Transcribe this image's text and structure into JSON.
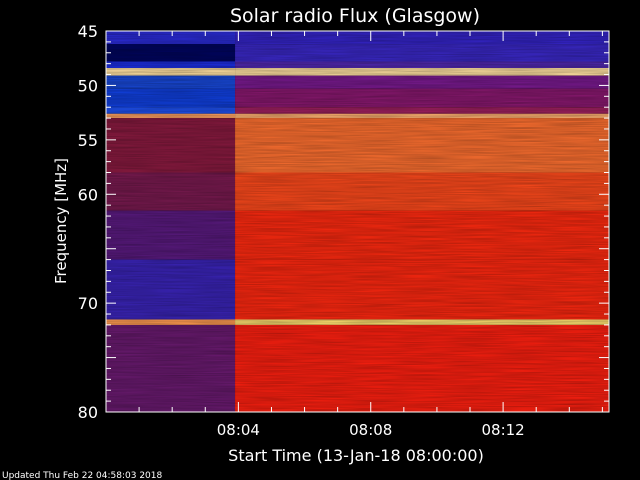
{
  "chart_data": {
    "type": "heatmap",
    "title": "Solar radio Flux (Glasgow)",
    "xlabel": "Start Time (13-Jan-18 08:00:00)",
    "ylabel": "Frequency [MHz]",
    "footer": "Updated Thu Feb 22 04:58:03 2018",
    "x_range_minutes": [
      0,
      15.2
    ],
    "y_range_mhz": [
      45,
      80
    ],
    "y_ticks": [
      {
        "value": 45,
        "label": "45"
      },
      {
        "value": 50,
        "label": "50"
      },
      {
        "value": 55,
        "label": "55"
      },
      {
        "value": 60,
        "label": "60"
      },
      {
        "value": 65,
        "label": ""
      },
      {
        "value": 70,
        "label": "70"
      },
      {
        "value": 75,
        "label": ""
      },
      {
        "value": 80,
        "label": "80"
      }
    ],
    "x_ticks": [
      {
        "value": 4,
        "label": "08:04"
      },
      {
        "value": 8,
        "label": "08:08"
      },
      {
        "value": 12,
        "label": "08:12"
      }
    ],
    "x_minor_step": 1,
    "y_minor_step": 1,
    "transition_minute": 3.9,
    "colormap": [
      "#000033",
      "#1a1aa8",
      "#3a2cd0",
      "#7a1450",
      "#c01818",
      "#ff2a10",
      "#ff7a2a",
      "#ffd070",
      "#ffffa0"
    ],
    "bands": [
      {
        "from": 45,
        "to": 46.2,
        "before": "#2a2bd6",
        "after": "#3424c8"
      },
      {
        "from": 46.2,
        "to": 47.8,
        "before": "#000560",
        "after": "#3a28c8"
      },
      {
        "from": 47.8,
        "to": 48.4,
        "before": "#1c2ee0",
        "after": "#5028b0"
      },
      {
        "from": 48.4,
        "to": 49.1,
        "before": "#ffe0a0",
        "after": "#ffe0a0"
      },
      {
        "from": 49.1,
        "to": 50.3,
        "before": "#1848d8",
        "after": "#7a1a90"
      },
      {
        "from": 50.3,
        "to": 52.0,
        "before": "#1040e0",
        "after": "#8a1870"
      },
      {
        "from": 52.0,
        "to": 52.6,
        "before": "#1e50f0",
        "after": "#a02060"
      },
      {
        "from": 52.6,
        "to": 53.0,
        "before": "#ffa060",
        "after": "#ffb070"
      },
      {
        "from": 53.0,
        "to": 58.0,
        "before": "#8a1a40",
        "after": "#ff7030"
      },
      {
        "from": 58.0,
        "to": 61.5,
        "before": "#7a1a50",
        "after": "#ff4a1c"
      },
      {
        "from": 61.5,
        "to": 66.0,
        "before": "#5a1a80",
        "after": "#ff2a10"
      },
      {
        "from": 66.0,
        "to": 71.5,
        "before": "#3a24b8",
        "after": "#ff2810"
      },
      {
        "from": 71.5,
        "to": 72.0,
        "before": "#ff9a50",
        "after": "#ffe070"
      },
      {
        "from": 72.0,
        "to": 80.0,
        "before": "#6a1a70",
        "after": "#ff2010"
      }
    ]
  }
}
